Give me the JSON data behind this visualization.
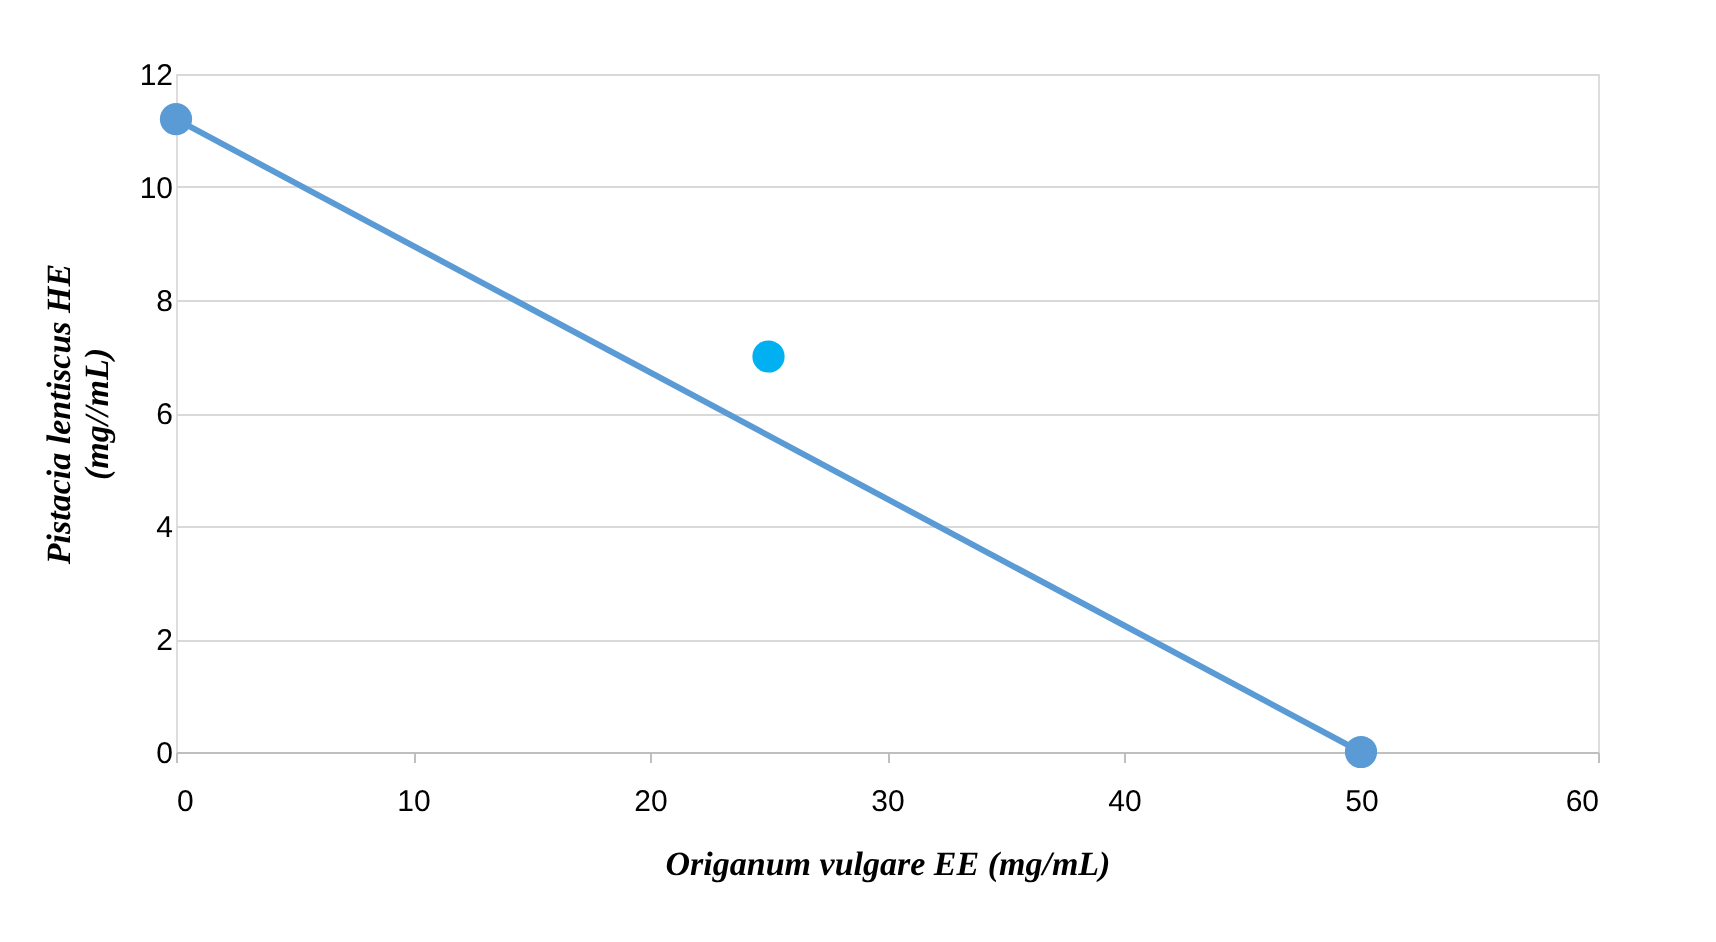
{
  "chart_data": {
    "type": "line",
    "xlabel": "Origanum vulgare  EE (mg/mL)",
    "ylabel": "Pistacia lentiscus HE\n(mg//mL)",
    "series": [
      {
        "x": [
          0,
          50
        ],
        "values": [
          11.2,
          0
        ],
        "color": "#5b9bd5",
        "marker": "circle"
      },
      {
        "type": "scatter",
        "x": [
          25
        ],
        "values": [
          7
        ],
        "color": "#00b0f0",
        "marker": "circle"
      }
    ],
    "xlim": [
      0,
      60
    ],
    "xticks": [
      0,
      10,
      20,
      30,
      40,
      50,
      60
    ],
    "ylim": [
      0,
      12
    ],
    "yticks": [
      0,
      2,
      4,
      6,
      8,
      10,
      12
    ],
    "grid": "y"
  }
}
